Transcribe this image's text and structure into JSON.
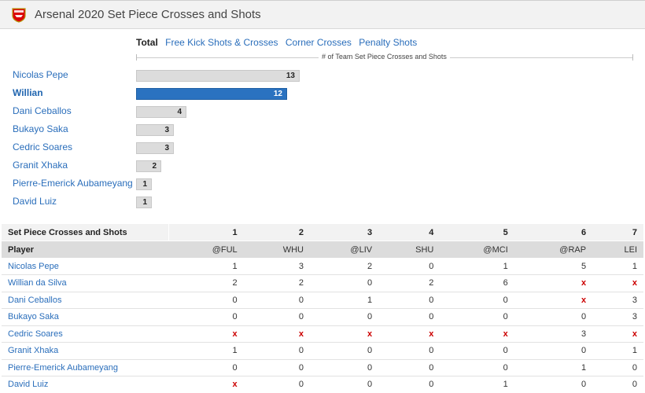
{
  "header": {
    "title": "Arsenal 2020 Set Piece Crosses and Shots",
    "logo": "arsenal-crest"
  },
  "tabs": [
    {
      "label": "Total",
      "active": true
    },
    {
      "label": "Free Kick Shots & Crosses",
      "active": false
    },
    {
      "label": "Corner Crosses",
      "active": false
    },
    {
      "label": "Penalty Shots",
      "active": false
    }
  ],
  "chart_data": {
    "type": "bar",
    "orientation": "horizontal",
    "title": "# of Team Set Piece Crosses and Shots",
    "categories": [
      "Nicolas Pepe",
      "Willian",
      "Dani Ceballos",
      "Bukayo Saka",
      "Cedric Soares",
      "Granit Xhaka",
      "Pierre-Emerick Aubameyang",
      "David Luiz"
    ],
    "values": [
      13,
      12,
      4,
      3,
      3,
      2,
      1,
      1
    ],
    "highlighted": "Willian",
    "colors": {
      "bar": "#dcdcdc",
      "highlight": "#2a72c0"
    }
  },
  "table": {
    "group_header": "Set Piece Crosses and Shots",
    "player_header": "Player",
    "match_numbers": [
      "1",
      "2",
      "3",
      "4",
      "5",
      "6",
      "7"
    ],
    "opponents": [
      "@FUL",
      "WHU",
      "@LIV",
      "SHU",
      "@MCI",
      "@RAP",
      "LEI"
    ],
    "rows": [
      {
        "player": "Nicolas Pepe",
        "values": [
          "1",
          "3",
          "2",
          "0",
          "1",
          "5",
          "1"
        ]
      },
      {
        "player": "Willian da Silva",
        "values": [
          "2",
          "2",
          "0",
          "2",
          "6",
          "x",
          "x"
        ]
      },
      {
        "player": "Dani Ceballos",
        "values": [
          "0",
          "0",
          "1",
          "0",
          "0",
          "x",
          "3"
        ]
      },
      {
        "player": "Bukayo Saka",
        "values": [
          "0",
          "0",
          "0",
          "0",
          "0",
          "0",
          "3"
        ]
      },
      {
        "player": "Cedric Soares",
        "values": [
          "x",
          "x",
          "x",
          "x",
          "x",
          "3",
          "x"
        ]
      },
      {
        "player": "Granit Xhaka",
        "values": [
          "1",
          "0",
          "0",
          "0",
          "0",
          "0",
          "1"
        ]
      },
      {
        "player": "Pierre-Emerick Aubameyang",
        "values": [
          "0",
          "0",
          "0",
          "0",
          "0",
          "1",
          "0"
        ]
      },
      {
        "player": "David Luiz",
        "values": [
          "x",
          "0",
          "0",
          "0",
          "1",
          "0",
          "0"
        ]
      }
    ]
  }
}
